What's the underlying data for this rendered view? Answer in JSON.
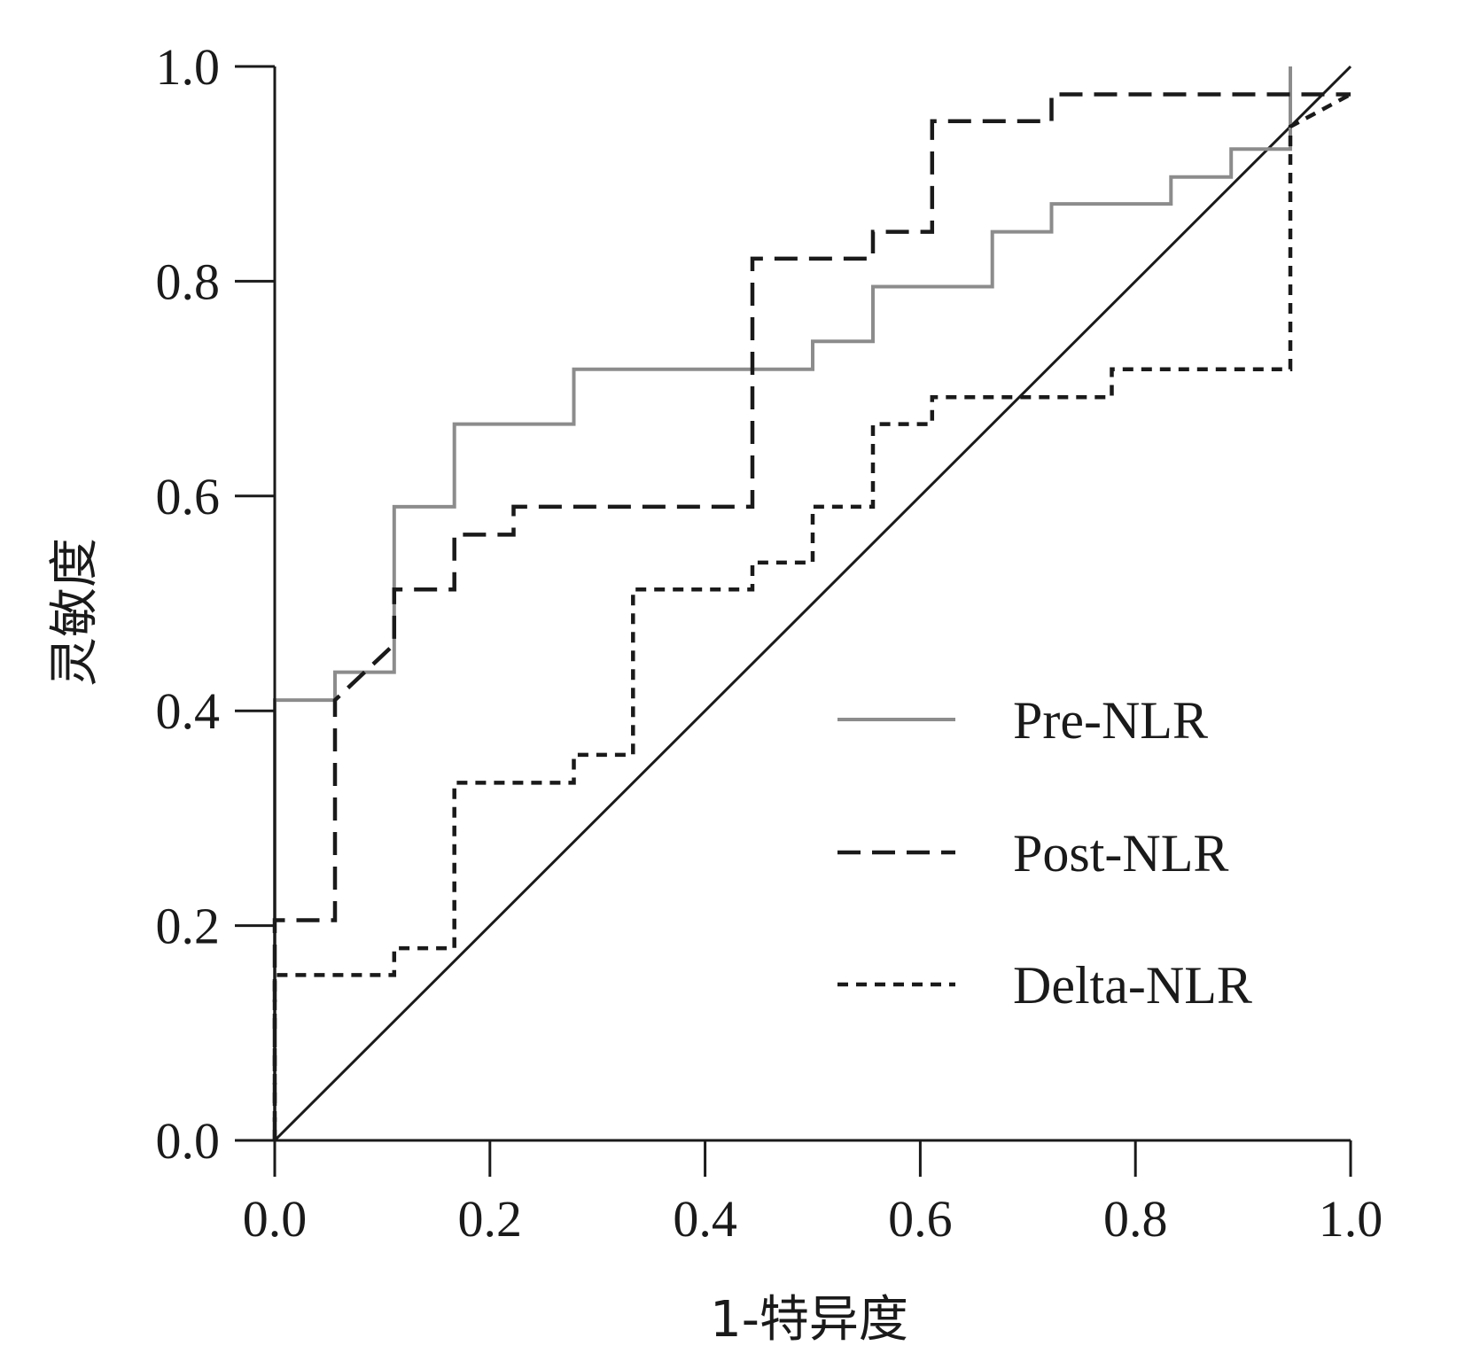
{
  "chart_data": {
    "type": "line",
    "title": "",
    "xlabel": "1-特异度",
    "ylabel": "灵敏度",
    "xlim": [
      0,
      1
    ],
    "ylim": [
      0,
      1
    ],
    "grid": false,
    "legend_position": "center-right",
    "x_ticks": [
      "0.0",
      "0.2",
      "0.4",
      "0.6",
      "0.8",
      "1.0"
    ],
    "y_ticks": [
      "0.0",
      "0.2",
      "0.4",
      "0.6",
      "0.8",
      "1.0"
    ],
    "x_tick_values": [
      0,
      0.2,
      0.4,
      0.6,
      0.8,
      1.0
    ],
    "y_tick_values": [
      0,
      0.2,
      0.4,
      0.6,
      0.8,
      1.0
    ],
    "reference_line": {
      "x": [
        0,
        1
      ],
      "y": [
        0,
        1
      ],
      "color": "#1a1a1a"
    },
    "series": [
      {
        "name": "Pre-NLR",
        "color": "#8c8c8c",
        "style": "solid",
        "x": [
          0,
          0,
          0.056,
          0.056,
          0.111,
          0.111,
          0.167,
          0.167,
          0.278,
          0.278,
          0.5,
          0.5,
          0.556,
          0.556,
          0.667,
          0.667,
          0.722,
          0.722,
          0.833,
          0.833,
          0.889,
          0.889,
          0.944,
          0.944
        ],
        "y": [
          0,
          0.41,
          0.41,
          0.436,
          0.436,
          0.59,
          0.59,
          0.667,
          0.667,
          0.718,
          0.718,
          0.744,
          0.744,
          0.795,
          0.795,
          0.846,
          0.846,
          0.872,
          0.872,
          0.897,
          0.897,
          0.923,
          0.923,
          1.0
        ]
      },
      {
        "name": "Post-NLR",
        "color": "#1a1a1a",
        "style": "dashed",
        "x": [
          0,
          0,
          0.056,
          0.056,
          0.111,
          0.111,
          0.167,
          0.167,
          0.222,
          0.222,
          0.444,
          0.444,
          0.556,
          0.556,
          0.611,
          0.611,
          0.722,
          0.722,
          1.0
        ],
        "y": [
          0,
          0.205,
          0.205,
          0.41,
          0.462,
          0.513,
          0.513,
          0.564,
          0.564,
          0.59,
          0.59,
          0.821,
          0.821,
          0.846,
          0.846,
          0.949,
          0.949,
          0.974,
          0.974
        ]
      },
      {
        "name": "Delta-NLR",
        "color": "#1a1a1a",
        "style": "dotted",
        "x": [
          0,
          0,
          0.111,
          0.111,
          0.167,
          0.167,
          0.278,
          0.278,
          0.333,
          0.333,
          0.444,
          0.444,
          0.5,
          0.5,
          0.556,
          0.556,
          0.611,
          0.611,
          0.778,
          0.778,
          0.944,
          0.944,
          1.0
        ],
        "y": [
          0,
          0.154,
          0.154,
          0.179,
          0.179,
          0.333,
          0.333,
          0.359,
          0.359,
          0.513,
          0.513,
          0.538,
          0.538,
          0.59,
          0.59,
          0.667,
          0.667,
          0.692,
          0.692,
          0.718,
          0.718,
          0.944,
          0.974
        ]
      }
    ]
  }
}
